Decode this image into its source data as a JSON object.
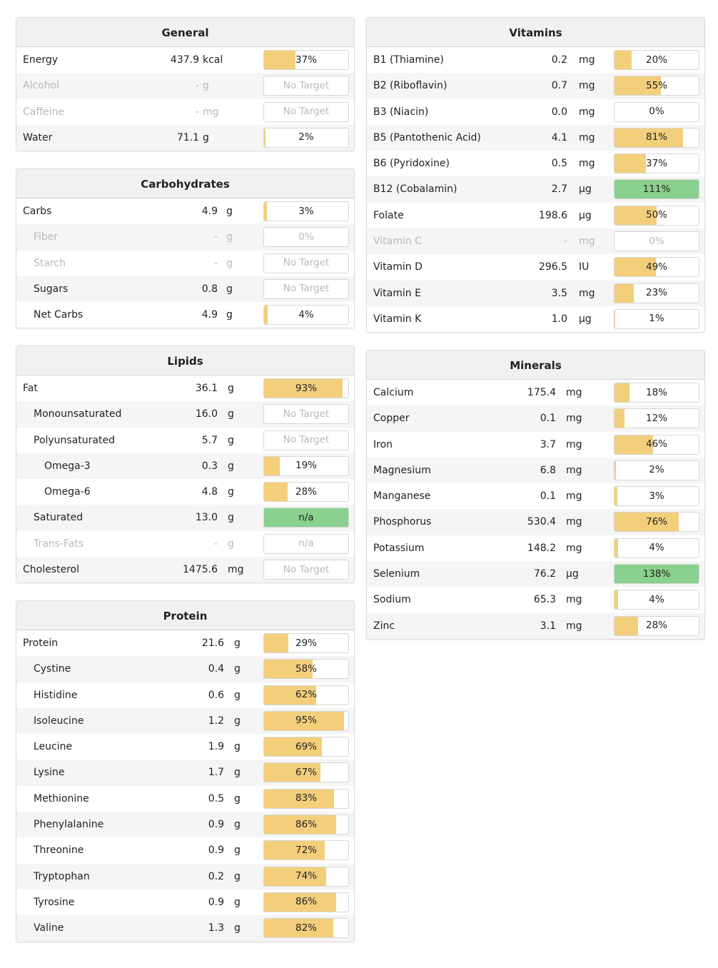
{
  "colors": {
    "bar_fill": "#f3cf7c",
    "bar_over": "#8ad08f",
    "header_bg": "#f1f1f1",
    "muted_text": "#b9b9b9"
  },
  "panels": {
    "general": {
      "title": "General",
      "rows": [
        {
          "name": "Energy",
          "amount": "437.9",
          "unit": "kcal",
          "pct": "37%",
          "fill": 37
        },
        {
          "name": "Alcohol",
          "amount": "-",
          "unit": "g",
          "pct": "No Target",
          "fill": 0,
          "muted": true
        },
        {
          "name": "Caffeine",
          "amount": "-",
          "unit": "mg",
          "pct": "No Target",
          "fill": 0,
          "muted": true
        },
        {
          "name": "Water",
          "amount": "71.1",
          "unit": "g",
          "pct": "2%",
          "fill": 2
        }
      ]
    },
    "carbs": {
      "title": "Carbohydrates",
      "rows": [
        {
          "name": "Carbs",
          "amount": "4.9",
          "unit": "g",
          "pct": "3%",
          "fill": 3
        },
        {
          "name": "Fiber",
          "amount": "-",
          "unit": "g",
          "pct": "0%",
          "fill": 0,
          "muted": true,
          "indent": 1
        },
        {
          "name": "Starch",
          "amount": "-",
          "unit": "g",
          "pct": "No Target",
          "fill": 0,
          "muted": true,
          "indent": 1
        },
        {
          "name": "Sugars",
          "amount": "0.8",
          "unit": "g",
          "pct": "No Target",
          "fill": 0,
          "pctMuted": true,
          "indent": 1
        },
        {
          "name": "Net Carbs",
          "amount": "4.9",
          "unit": "g",
          "pct": "4%",
          "fill": 4,
          "indent": 1
        }
      ]
    },
    "lipids": {
      "title": "Lipids",
      "rows": [
        {
          "name": "Fat",
          "amount": "36.1",
          "unit": "g",
          "pct": "93%",
          "fill": 93
        },
        {
          "name": "Monounsaturated",
          "amount": "16.0",
          "unit": "g",
          "pct": "No Target",
          "fill": 0,
          "pctMuted": true,
          "indent": 1
        },
        {
          "name": "Polyunsaturated",
          "amount": "5.7",
          "unit": "g",
          "pct": "No Target",
          "fill": 0,
          "pctMuted": true,
          "indent": 1
        },
        {
          "name": "Omega-3",
          "amount": "0.3",
          "unit": "g",
          "pct": "19%",
          "fill": 19,
          "indent": 2
        },
        {
          "name": "Omega-6",
          "amount": "4.8",
          "unit": "g",
          "pct": "28%",
          "fill": 28,
          "indent": 2
        },
        {
          "name": "Saturated",
          "amount": "13.0",
          "unit": "g",
          "pct": "n/a",
          "fill": 100,
          "green": true,
          "indent": 1
        },
        {
          "name": "Trans-Fats",
          "amount": "-",
          "unit": "g",
          "pct": "n/a",
          "fill": 0,
          "muted": true,
          "indent": 1
        },
        {
          "name": "Cholesterol",
          "amount": "1475.6",
          "unit": "mg",
          "pct": "No Target",
          "fill": 0,
          "pctMuted": true
        }
      ]
    },
    "protein": {
      "title": "Protein",
      "rows": [
        {
          "name": "Protein",
          "amount": "21.6",
          "unit": "g",
          "pct": "29%",
          "fill": 29
        },
        {
          "name": "Cystine",
          "amount": "0.4",
          "unit": "g",
          "pct": "58%",
          "fill": 58,
          "indent": 1
        },
        {
          "name": "Histidine",
          "amount": "0.6",
          "unit": "g",
          "pct": "62%",
          "fill": 62,
          "indent": 1
        },
        {
          "name": "Isoleucine",
          "amount": "1.2",
          "unit": "g",
          "pct": "95%",
          "fill": 95,
          "indent": 1
        },
        {
          "name": "Leucine",
          "amount": "1.9",
          "unit": "g",
          "pct": "69%",
          "fill": 69,
          "indent": 1
        },
        {
          "name": "Lysine",
          "amount": "1.7",
          "unit": "g",
          "pct": "67%",
          "fill": 67,
          "indent": 1
        },
        {
          "name": "Methionine",
          "amount": "0.5",
          "unit": "g",
          "pct": "83%",
          "fill": 83,
          "indent": 1
        },
        {
          "name": "Phenylalanine",
          "amount": "0.9",
          "unit": "g",
          "pct": "86%",
          "fill": 86,
          "indent": 1
        },
        {
          "name": "Threonine",
          "amount": "0.9",
          "unit": "g",
          "pct": "72%",
          "fill": 72,
          "indent": 1
        },
        {
          "name": "Tryptophan",
          "amount": "0.2",
          "unit": "g",
          "pct": "74%",
          "fill": 74,
          "indent": 1
        },
        {
          "name": "Tyrosine",
          "amount": "0.9",
          "unit": "g",
          "pct": "86%",
          "fill": 86,
          "indent": 1
        },
        {
          "name": "Valine",
          "amount": "1.3",
          "unit": "g",
          "pct": "82%",
          "fill": 82,
          "indent": 1
        }
      ]
    },
    "vitamins": {
      "title": "Vitamins",
      "rows": [
        {
          "name": "B1 (Thiamine)",
          "amount": "0.2",
          "unit": "mg",
          "pct": "20%",
          "fill": 20
        },
        {
          "name": "B2 (Riboflavin)",
          "amount": "0.7",
          "unit": "mg",
          "pct": "55%",
          "fill": 55
        },
        {
          "name": "B3 (Niacin)",
          "amount": "0.0",
          "unit": "mg",
          "pct": "0%",
          "fill": 0
        },
        {
          "name": "B5 (Pantothenic Acid)",
          "amount": "4.1",
          "unit": "mg",
          "pct": "81%",
          "fill": 81
        },
        {
          "name": "B6 (Pyridoxine)",
          "amount": "0.5",
          "unit": "mg",
          "pct": "37%",
          "fill": 37
        },
        {
          "name": "B12 (Cobalamin)",
          "amount": "2.7",
          "unit": "µg",
          "pct": "111%",
          "fill": 100,
          "green": true
        },
        {
          "name": "Folate",
          "amount": "198.6",
          "unit": "µg",
          "pct": "50%",
          "fill": 50
        },
        {
          "name": "Vitamin C",
          "amount": "-",
          "unit": "mg",
          "pct": "0%",
          "fill": 0,
          "muted": true
        },
        {
          "name": "Vitamin D",
          "amount": "296.5",
          "unit": "IU",
          "pct": "49%",
          "fill": 49
        },
        {
          "name": "Vitamin E",
          "amount": "3.5",
          "unit": "mg",
          "pct": "23%",
          "fill": 23
        },
        {
          "name": "Vitamin K",
          "amount": "1.0",
          "unit": "µg",
          "pct": "1%",
          "fill": 1
        }
      ]
    },
    "minerals": {
      "title": "Minerals",
      "rows": [
        {
          "name": "Calcium",
          "amount": "175.4",
          "unit": "mg",
          "pct": "18%",
          "fill": 18
        },
        {
          "name": "Copper",
          "amount": "0.1",
          "unit": "mg",
          "pct": "12%",
          "fill": 12
        },
        {
          "name": "Iron",
          "amount": "3.7",
          "unit": "mg",
          "pct": "46%",
          "fill": 46
        },
        {
          "name": "Magnesium",
          "amount": "6.8",
          "unit": "mg",
          "pct": "2%",
          "fill": 2
        },
        {
          "name": "Manganese",
          "amount": "0.1",
          "unit": "mg",
          "pct": "3%",
          "fill": 3
        },
        {
          "name": "Phosphorus",
          "amount": "530.4",
          "unit": "mg",
          "pct": "76%",
          "fill": 76
        },
        {
          "name": "Potassium",
          "amount": "148.2",
          "unit": "mg",
          "pct": "4%",
          "fill": 4
        },
        {
          "name": "Selenium",
          "amount": "76.2",
          "unit": "µg",
          "pct": "138%",
          "fill": 100,
          "green": true
        },
        {
          "name": "Sodium",
          "amount": "65.3",
          "unit": "mg",
          "pct": "4%",
          "fill": 4
        },
        {
          "name": "Zinc",
          "amount": "3.1",
          "unit": "mg",
          "pct": "28%",
          "fill": 28
        }
      ]
    }
  }
}
